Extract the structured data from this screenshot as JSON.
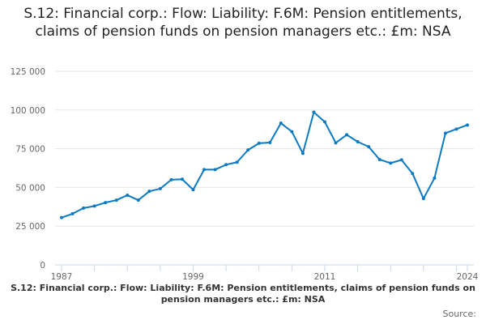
{
  "chart_data": {
    "type": "line",
    "title": "S.12: Financial corp.: Flow: Liability: F.6M: Pension entitlements, claims of pension funds on pension managers etc.: £m: NSA",
    "subtitle": "S.12: Financial corp.: Flow: Liability: F.6M: Pension entitlements, claims of pension funds on pension managers etc.: £m: NSA",
    "source": "Source:",
    "xlabel": "",
    "ylabel": "",
    "x": [
      1987,
      1988,
      1989,
      1990,
      1991,
      1992,
      1993,
      1994,
      1995,
      1996,
      1997,
      1998,
      1999,
      2000,
      2001,
      2002,
      2003,
      2004,
      2005,
      2006,
      2007,
      2008,
      2009,
      2010,
      2011,
      2012,
      2013,
      2014,
      2015,
      2016,
      2017,
      2018,
      2019,
      2020,
      2021,
      2022,
      2023,
      2024
    ],
    "series": [
      {
        "name": "F.6M liability flow (£m)",
        "color": "#0b7ac2",
        "values": [
          30500,
          33000,
          36700,
          38000,
          40200,
          41800,
          45000,
          41800,
          47500,
          49200,
          55000,
          55300,
          48500,
          61500,
          61500,
          64700,
          66300,
          74200,
          78500,
          79000,
          91500,
          86000,
          72000,
          98600,
          92300,
          78800,
          84000,
          79500,
          76300,
          68000,
          65700,
          67800,
          59000,
          42800,
          56000,
          85000,
          87700,
          90300
        ]
      }
    ],
    "ylim": [
      0,
      125000
    ],
    "yticks": [
      0,
      25000,
      50000,
      75000,
      100000,
      125000
    ],
    "ytick_labels": [
      "0",
      "25 000",
      "50 000",
      "75 000",
      "100 000",
      "125 000"
    ],
    "xticks": [
      1987,
      1999,
      2011,
      2024
    ],
    "xtick_labels": [
      "1987",
      "1999",
      "2011",
      "2024"
    ],
    "grid": true,
    "legend": "none"
  }
}
